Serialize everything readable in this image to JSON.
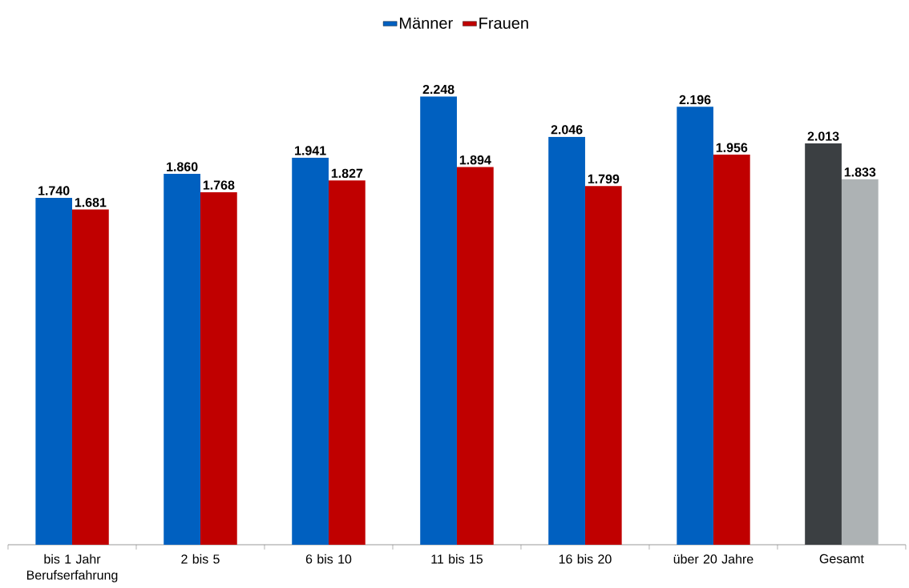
{
  "chart_data": {
    "type": "bar",
    "categories": [
      "bis 1 Jahr Berufserfahrung",
      "2 bis 5",
      "6 bis 10",
      "11 bis 15",
      "16 bis 20",
      "über 20 Jahre",
      "Gesamt"
    ],
    "series": [
      {
        "name": "Männer",
        "color": "#0060c0",
        "colors": [
          "#0060c0",
          "#0060c0",
          "#0060c0",
          "#0060c0",
          "#0060c0",
          "#0060c0",
          "#3b3f42"
        ],
        "values": [
          1740,
          1860,
          1941,
          2248,
          2046,
          2196,
          2013
        ],
        "value_labels": [
          "1.740",
          "1.860",
          "1.941",
          "2.248",
          "2.046",
          "2.196",
          "2.013"
        ]
      },
      {
        "name": "Frauen",
        "color": "#c00000",
        "colors": [
          "#c00000",
          "#c00000",
          "#c00000",
          "#c00000",
          "#c00000",
          "#c00000",
          "#adb2b4"
        ],
        "values": [
          1681,
          1768,
          1827,
          1894,
          1799,
          1956,
          1833
        ],
        "value_labels": [
          "1.681",
          "1.768",
          "1.827",
          "1.894",
          "1.799",
          "1.956",
          "1.833"
        ]
      }
    ],
    "legend": "top"
  }
}
